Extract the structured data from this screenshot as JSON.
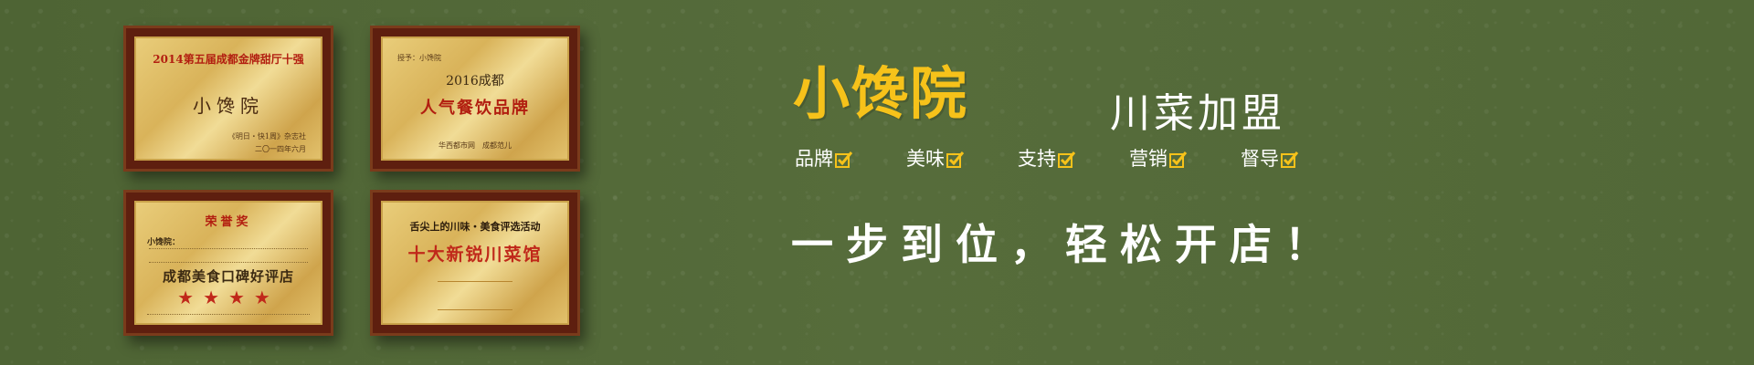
{
  "plaques": {
    "p1": {
      "title": "2014第五届成都金牌甜厅十强",
      "name": "小馋院",
      "issuer": "《明日・快1周》杂志社",
      "date": "二〇一四年六月"
    },
    "p2": {
      "to": "授予：小馋院",
      "year": "2016成都",
      "title": "人气餐饮品牌",
      "footer": "华西都市网　成都范儿"
    },
    "p3": {
      "title": "荣誉奖",
      "to": "小馋院：",
      "award": "成都美食口碑好评店",
      "stars": "★★★★"
    },
    "p4": {
      "subtitle": "舌尖上的川味・美食评选活动",
      "title": "十大新锐川菜馆"
    }
  },
  "brand": "小馋院",
  "headline": "川菜加盟",
  "tags": [
    "品牌",
    "美味",
    "支持",
    "营销",
    "督导"
  ],
  "slogan": "一步到位，轻松开店！",
  "colors": {
    "background": "#546a3a",
    "brand": "#f6c21a",
    "check": "#f6c21a",
    "text": "#ffffff"
  }
}
